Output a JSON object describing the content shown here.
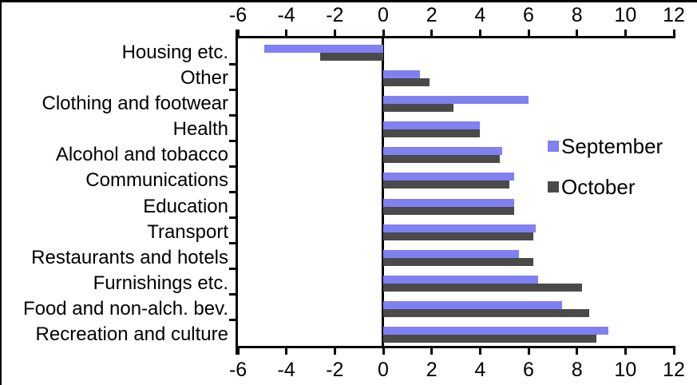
{
  "chart_data": {
    "type": "bar",
    "orientation": "horizontal",
    "title": "",
    "xlabel": "",
    "ylabel": "",
    "categories": [
      "Housing etc.",
      "Other",
      "Clothing and footwear",
      "Health",
      "Alcohol and tobacco",
      "Communications",
      "Education",
      "Transport",
      "Restaurants and hotels",
      "Furnishings etc.",
      "Food and non-alch. bev.",
      "Recreation and culture"
    ],
    "series": [
      {
        "name": "September",
        "color": "#8080F2",
        "values": [
          -4.9,
          1.5,
          6.0,
          4.0,
          4.9,
          5.4,
          5.4,
          6.3,
          5.6,
          6.4,
          7.4,
          9.3
        ]
      },
      {
        "name": "October",
        "color": "#4A4A4A",
        "values": [
          -2.6,
          1.9,
          2.9,
          4.0,
          4.8,
          5.2,
          5.4,
          6.2,
          6.2,
          8.2,
          8.5,
          8.8
        ]
      }
    ],
    "x_ticks": [
      -6,
      -4,
      -2,
      0,
      2,
      4,
      6,
      8,
      10,
      12
    ],
    "xlim": [
      -6,
      12
    ],
    "grid": false,
    "legend_position": "middle-right",
    "axis_color": "#000000",
    "background_color": "#FFFFFF"
  }
}
